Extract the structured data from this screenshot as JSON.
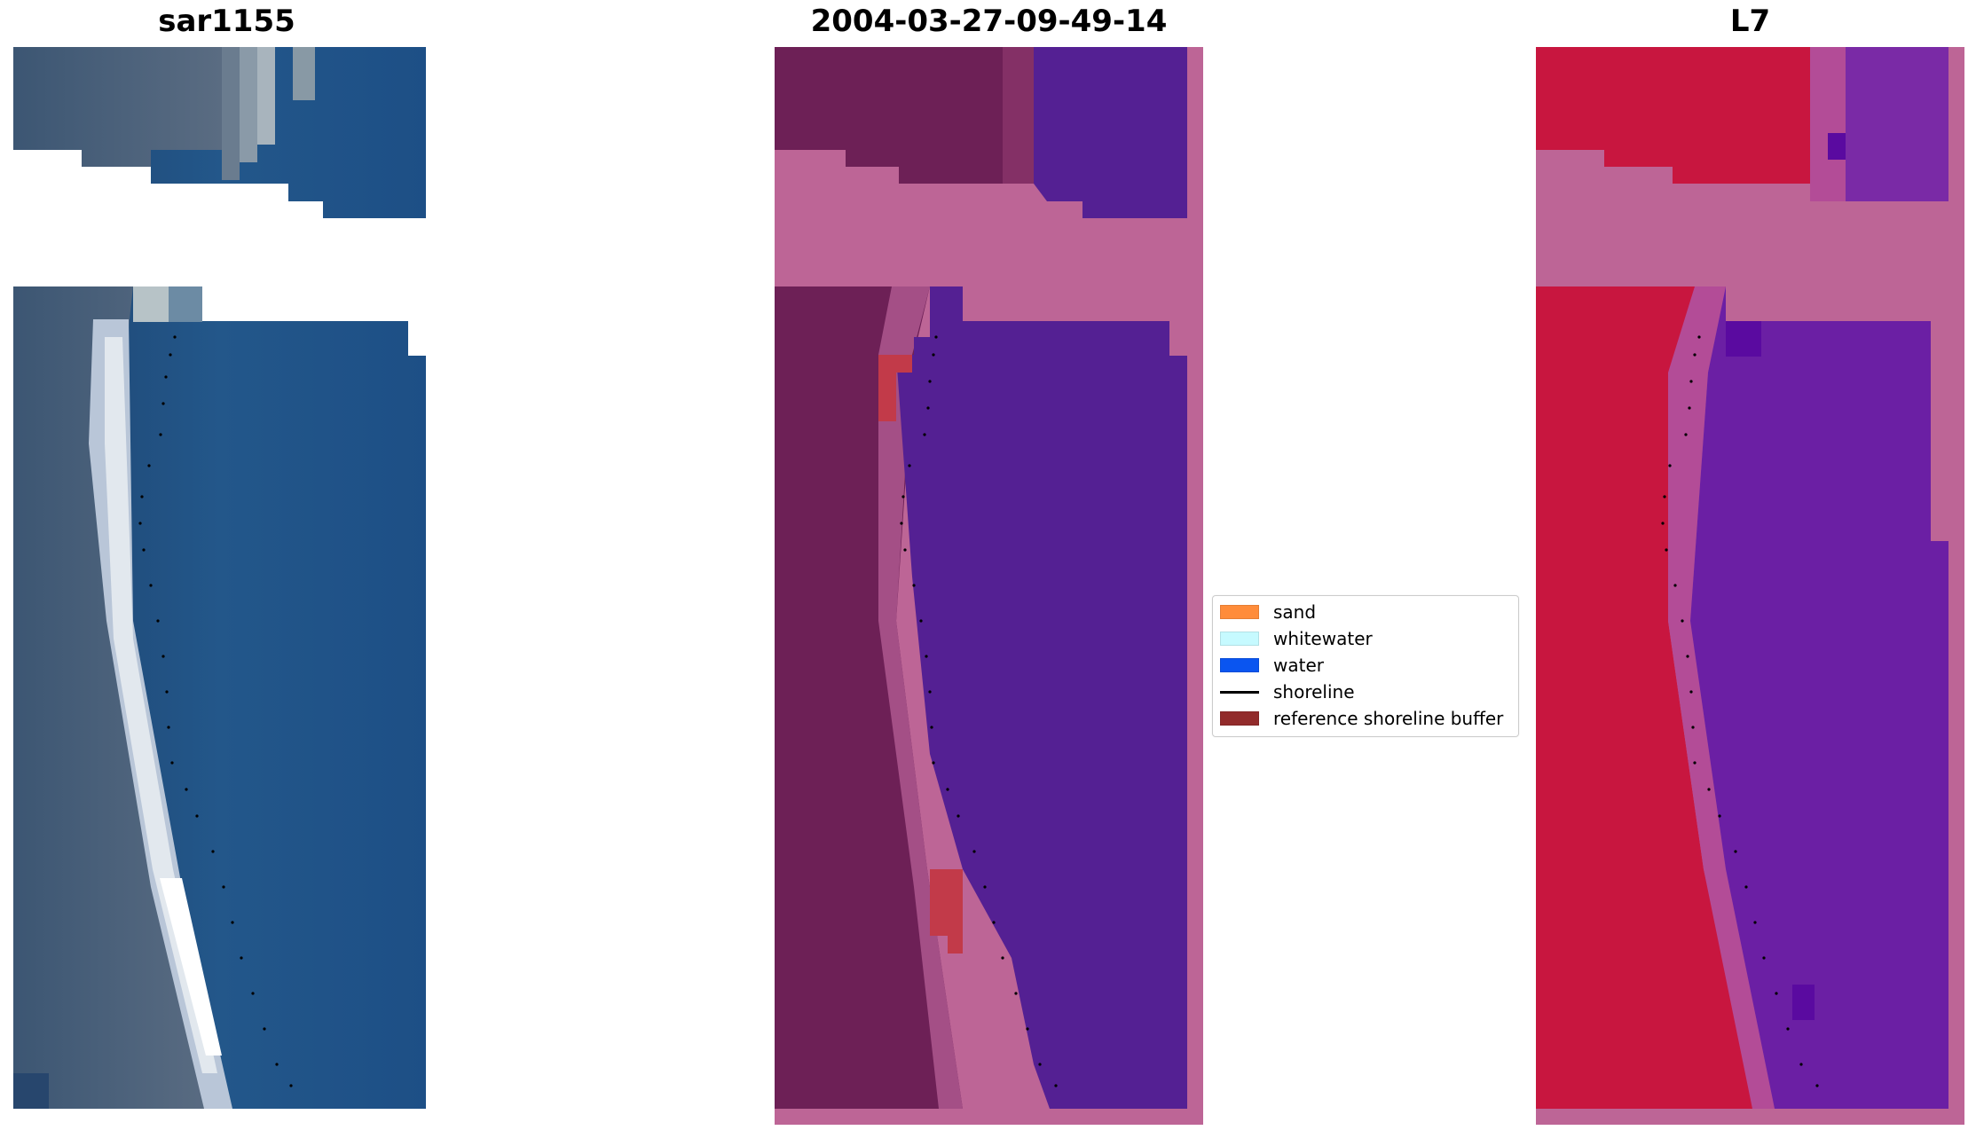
{
  "panels": [
    {
      "title": "sar1155"
    },
    {
      "title": "2004-03-27-09-49-14"
    },
    {
      "title": "L7"
    }
  ],
  "legend": {
    "items": [
      {
        "label": "sand",
        "color": "#ff8c3a",
        "kind": "patch"
      },
      {
        "label": "whitewater",
        "color": "#c6faff",
        "kind": "patch"
      },
      {
        "label": "water",
        "color": "#0a55f0",
        "kind": "patch"
      },
      {
        "label": "shoreline",
        "color": "#000000",
        "kind": "line"
      },
      {
        "label": "reference shoreline buffer",
        "color": "#922b2b",
        "kind": "patch"
      }
    ]
  },
  "colors": {
    "rgb_land": "#465a74",
    "rgb_sand": "#c9d2e0",
    "rgb_water": "#1d4f86",
    "class_land": "#6d2056",
    "class_no_data": "#bd6596",
    "class_water": "#542093",
    "class_buffer_overlap": "#c23a49",
    "class_sand_transition": "#a44f86",
    "index_land": "#c8163f",
    "index_water": "#6b1fa4",
    "index_no_data": "#bd6596",
    "index_transition": "#b34c97"
  }
}
